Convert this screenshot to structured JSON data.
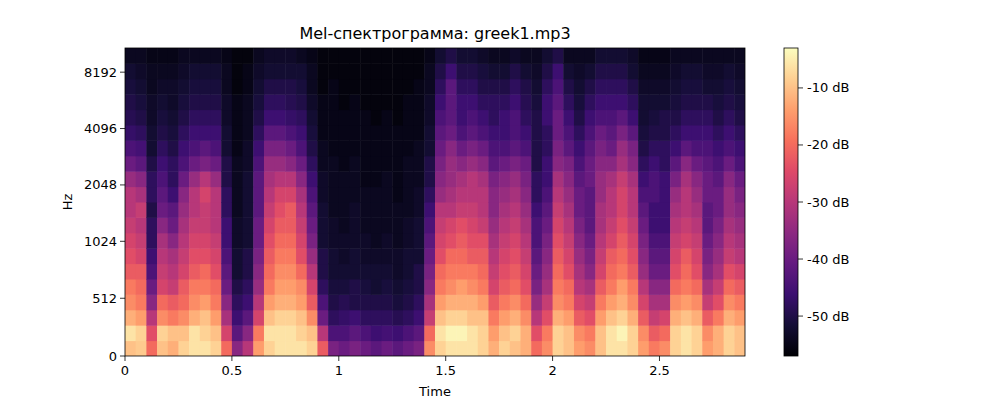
{
  "chart_data": {
    "type": "heatmap",
    "title": "Mel-спектрограмма: greek1.mp3",
    "x_label": "Time",
    "y_label": "Hz",
    "xlim": [
      0,
      2.9
    ],
    "ylim": [
      0,
      11025
    ],
    "xticks": [
      0,
      0.5,
      1,
      1.5,
      2,
      2.5
    ],
    "yticks": [
      0,
      512,
      1024,
      2048,
      4096,
      8192
    ],
    "log": "y",
    "colorbar": {
      "range": [
        -57,
        -3
      ],
      "ticks": [
        {
          "value": -10,
          "label": "-10 dB"
        },
        {
          "value": -20,
          "label": "-20 dB"
        },
        {
          "value": -30,
          "label": "-30 dB"
        },
        {
          "value": -40,
          "label": "-40 dB"
        },
        {
          "value": -50,
          "label": "-50 dB"
        }
      ]
    },
    "cells": [
      [
        -10,
        -6,
        -12,
        -16,
        -18,
        -22,
        -24,
        -26,
        -28,
        -30,
        -30,
        -34,
        -40,
        -44,
        -47,
        -49,
        -50,
        -51,
        -52,
        -54
      ],
      [
        -9,
        -8,
        -14,
        -18,
        -20,
        -22,
        -26,
        -28,
        -30,
        -28,
        -32,
        -36,
        -42,
        -45,
        -48,
        -50,
        -51,
        -52,
        -53,
        -54
      ],
      [
        -20,
        -24,
        -30,
        -36,
        -40,
        -44,
        -46,
        -48,
        -48,
        -50,
        -48,
        -48,
        -50,
        -52,
        -52,
        -53,
        -53,
        -54,
        -54,
        -55
      ],
      [
        -10,
        -8,
        -16,
        -20,
        -26,
        -28,
        -30,
        -32,
        -36,
        -40,
        -42,
        -44,
        -46,
        -48,
        -50,
        -51,
        -52,
        -53,
        -54,
        -55
      ],
      [
        -12,
        -10,
        -18,
        -22,
        -28,
        -30,
        -32,
        -36,
        -40,
        -42,
        -46,
        -48,
        -48,
        -50,
        -51,
        -52,
        -53,
        -53,
        -54,
        -55
      ],
      [
        -8,
        -10,
        -16,
        -20,
        -22,
        -26,
        -28,
        -30,
        -32,
        -34,
        -36,
        -40,
        -44,
        -46,
        -48,
        -50,
        -51,
        -52,
        -53,
        -54
      ],
      [
        -6,
        -6,
        -12,
        -16,
        -18,
        -22,
        -24,
        -26,
        -28,
        -30,
        -30,
        -34,
        -40,
        -44,
        -46,
        -48,
        -50,
        -51,
        -52,
        -54
      ],
      [
        -6,
        -8,
        -10,
        -14,
        -18,
        -20,
        -24,
        -26,
        -28,
        -28,
        -26,
        -30,
        -38,
        -42,
        -46,
        -48,
        -50,
        -51,
        -52,
        -54
      ],
      [
        -8,
        -10,
        -14,
        -18,
        -20,
        -24,
        -26,
        -28,
        -30,
        -30,
        -30,
        -34,
        -40,
        -44,
        -46,
        -48,
        -50,
        -51,
        -52,
        -54
      ],
      [
        -20,
        -26,
        -32,
        -36,
        -40,
        -42,
        -44,
        -46,
        -46,
        -48,
        -48,
        -50,
        -50,
        -52,
        -52,
        -53,
        -53,
        -54,
        -54,
        -55
      ],
      [
        -36,
        -42,
        -46,
        -48,
        -50,
        -52,
        -52,
        -53,
        -53,
        -54,
        -54,
        -54,
        -54,
        -55,
        -55,
        -55,
        -55,
        -56,
        -56,
        -56
      ],
      [
        -30,
        -36,
        -42,
        -46,
        -48,
        -50,
        -50,
        -52,
        -52,
        -52,
        -52,
        -52,
        -53,
        -53,
        -54,
        -54,
        -54,
        -55,
        -55,
        -56
      ],
      [
        -14,
        -18,
        -26,
        -30,
        -34,
        -36,
        -38,
        -40,
        -40,
        -42,
        -42,
        -42,
        -44,
        -46,
        -48,
        -50,
        -51,
        -52,
        -53,
        -54
      ],
      [
        -8,
        -6,
        -10,
        -14,
        -18,
        -20,
        -22,
        -24,
        -26,
        -28,
        -30,
        -32,
        -34,
        -38,
        -42,
        -46,
        -48,
        -50,
        -52,
        -53
      ],
      [
        -6,
        -6,
        -8,
        -12,
        -14,
        -16,
        -18,
        -20,
        -22,
        -24,
        -26,
        -30,
        -34,
        -38,
        -42,
        -46,
        -48,
        -50,
        -52,
        -53
      ],
      [
        -6,
        -6,
        -8,
        -12,
        -14,
        -16,
        -18,
        -20,
        -22,
        -22,
        -26,
        -30,
        -36,
        -40,
        -44,
        -47,
        -49,
        -50,
        -52,
        -53
      ],
      [
        -6,
        -8,
        -10,
        -14,
        -16,
        -20,
        -24,
        -26,
        -28,
        -30,
        -32,
        -36,
        -40,
        -44,
        -46,
        -48,
        -50,
        -51,
        -52,
        -54
      ],
      [
        -8,
        -10,
        -16,
        -22,
        -26,
        -30,
        -34,
        -38,
        -40,
        -42,
        -44,
        -46,
        -48,
        -50,
        -51,
        -52,
        -53,
        -54,
        -54,
        -55
      ],
      [
        -22,
        -30,
        -40,
        -44,
        -48,
        -50,
        -50,
        -52,
        -52,
        -52,
        -53,
        -53,
        -54,
        -54,
        -55,
        -55,
        -55,
        -56,
        -56,
        -56
      ],
      [
        -38,
        -44,
        -48,
        -50,
        -51,
        -52,
        -52,
        -53,
        -53,
        -54,
        -54,
        -54,
        -54,
        -55,
        -55,
        -55,
        -55,
        -55,
        -56,
        -56
      ],
      [
        -40,
        -44,
        -47,
        -49,
        -51,
        -52,
        -53,
        -53,
        -54,
        -54,
        -54,
        -54,
        -55,
        -55,
        -55,
        -55,
        -56,
        -56,
        -56,
        -56
      ],
      [
        -38,
        -42,
        -46,
        -50,
        -50,
        -52,
        -52,
        -53,
        -53,
        -53,
        -54,
        -54,
        -54,
        -55,
        -55,
        -55,
        -55,
        -56,
        -56,
        -56
      ],
      [
        -40,
        -44,
        -48,
        -50,
        -51,
        -52,
        -53,
        -53,
        -54,
        -54,
        -54,
        -55,
        -55,
        -55,
        -55,
        -55,
        -56,
        -56,
        -56,
        -56
      ],
      [
        -42,
        -46,
        -48,
        -50,
        -52,
        -52,
        -53,
        -54,
        -54,
        -54,
        -54,
        -55,
        -55,
        -55,
        -55,
        -56,
        -56,
        -56,
        -56,
        -56
      ],
      [
        -40,
        -45,
        -48,
        -50,
        -51,
        -52,
        -53,
        -53,
        -54,
        -54,
        -54,
        -54,
        -55,
        -55,
        -55,
        -55,
        -56,
        -56,
        -56,
        -56
      ],
      [
        -42,
        -46,
        -49,
        -51,
        -52,
        -53,
        -53,
        -54,
        -54,
        -54,
        -55,
        -55,
        -55,
        -55,
        -55,
        -56,
        -56,
        -56,
        -56,
        -56
      ],
      [
        -40,
        -44,
        -48,
        -50,
        -51,
        -52,
        -52,
        -53,
        -53,
        -54,
        -54,
        -54,
        -54,
        -55,
        -55,
        -55,
        -55,
        -56,
        -56,
        -56
      ],
      [
        -38,
        -42,
        -46,
        -48,
        -50,
        -50,
        -52,
        -52,
        -52,
        -53,
        -53,
        -54,
        -54,
        -54,
        -55,
        -55,
        -55,
        -55,
        -56,
        -56
      ],
      [
        -16,
        -20,
        -28,
        -32,
        -36,
        -38,
        -40,
        -42,
        -44,
        -46,
        -48,
        -50,
        -50,
        -52,
        -52,
        -53,
        -53,
        -54,
        -54,
        -55
      ],
      [
        -8,
        -6,
        -10,
        -14,
        -18,
        -20,
        -24,
        -26,
        -28,
        -30,
        -34,
        -36,
        -38,
        -40,
        -42,
        -44,
        -46,
        -48,
        -50,
        -52
      ],
      [
        -6,
        -4,
        -8,
        -12,
        -16,
        -18,
        -20,
        -24,
        -26,
        -30,
        -32,
        -34,
        -34,
        -36,
        -40,
        -42,
        -42,
        -42,
        -46,
        -50
      ],
      [
        -6,
        -4,
        -8,
        -12,
        -14,
        -18,
        -20,
        -22,
        -24,
        -28,
        -30,
        -32,
        -36,
        -40,
        -44,
        -46,
        -46,
        -48,
        -50,
        -52
      ],
      [
        -6,
        -6,
        -10,
        -12,
        -16,
        -18,
        -22,
        -24,
        -26,
        -28,
        -30,
        -30,
        -34,
        -38,
        -42,
        -44,
        -46,
        -48,
        -50,
        -52
      ],
      [
        -8,
        -8,
        -10,
        -14,
        -18,
        -20,
        -22,
        -24,
        -28,
        -30,
        -30,
        -32,
        -36,
        -40,
        -44,
        -46,
        -48,
        -50,
        -51,
        -53
      ],
      [
        -12,
        -14,
        -18,
        -22,
        -26,
        -28,
        -30,
        -32,
        -34,
        -36,
        -36,
        -38,
        -42,
        -44,
        -46,
        -48,
        -48,
        -50,
        -52,
        -54
      ],
      [
        -8,
        -10,
        -14,
        -18,
        -22,
        -24,
        -26,
        -28,
        -30,
        -32,
        -34,
        -36,
        -40,
        -44,
        -46,
        -46,
        -48,
        -50,
        -52,
        -54
      ],
      [
        -10,
        -8,
        -12,
        -16,
        -20,
        -22,
        -24,
        -26,
        -28,
        -30,
        -32,
        -34,
        -38,
        -42,
        -44,
        -44,
        -46,
        -48,
        -50,
        -53
      ],
      [
        -12,
        -12,
        -16,
        -20,
        -24,
        -26,
        -28,
        -30,
        -32,
        -34,
        -36,
        -38,
        -40,
        -44,
        -46,
        -48,
        -49,
        -50,
        -52,
        -54
      ],
      [
        -20,
        -24,
        -30,
        -34,
        -38,
        -40,
        -42,
        -44,
        -44,
        -46,
        -48,
        -48,
        -50,
        -50,
        -50,
        -50,
        -51,
        -52,
        -53,
        -54
      ],
      [
        -16,
        -18,
        -24,
        -28,
        -32,
        -34,
        -36,
        -38,
        -40,
        -42,
        -44,
        -46,
        -46,
        -48,
        -48,
        -46,
        -46,
        -48,
        -50,
        -52
      ],
      [
        -8,
        -8,
        -12,
        -16,
        -18,
        -20,
        -22,
        -24,
        -26,
        -28,
        -30,
        -32,
        -36,
        -38,
        -40,
        -40,
        -42,
        -44,
        -46,
        -50
      ],
      [
        -10,
        -10,
        -14,
        -18,
        -20,
        -24,
        -26,
        -28,
        -30,
        -32,
        -34,
        -36,
        -38,
        -42,
        -44,
        -46,
        -48,
        -50,
        -52,
        -54
      ],
      [
        -14,
        -16,
        -22,
        -26,
        -30,
        -32,
        -34,
        -36,
        -38,
        -40,
        -40,
        -42,
        -44,
        -46,
        -48,
        -50,
        -51,
        -52,
        -53,
        -54
      ],
      [
        -16,
        -18,
        -24,
        -28,
        -32,
        -36,
        -38,
        -40,
        -42,
        -42,
        -42,
        -40,
        -40,
        -42,
        -44,
        -46,
        -48,
        -50,
        -52,
        -54
      ],
      [
        -10,
        -10,
        -14,
        -18,
        -22,
        -26,
        -28,
        -30,
        -32,
        -32,
        -34,
        -34,
        -36,
        -38,
        -40,
        -44,
        -46,
        -48,
        -50,
        -52
      ],
      [
        -6,
        -6,
        -10,
        -14,
        -18,
        -20,
        -22,
        -26,
        -28,
        -30,
        -30,
        -32,
        -36,
        -40,
        -42,
        -44,
        -46,
        -48,
        -50,
        -52
      ],
      [
        -6,
        -4,
        -8,
        -12,
        -14,
        -18,
        -20,
        -22,
        -24,
        -26,
        -26,
        -28,
        -32,
        -34,
        -38,
        -42,
        -46,
        -48,
        -50,
        -52
      ],
      [
        -8,
        -8,
        -12,
        -16,
        -18,
        -22,
        -24,
        -26,
        -28,
        -30,
        -30,
        -32,
        -36,
        -38,
        -42,
        -46,
        -48,
        -50,
        -52,
        -53
      ],
      [
        -14,
        -16,
        -22,
        -26,
        -30,
        -34,
        -36,
        -38,
        -40,
        -42,
        -44,
        -46,
        -48,
        -50,
        -51,
        -52,
        -52,
        -53,
        -54,
        -55
      ],
      [
        -18,
        -22,
        -28,
        -32,
        -36,
        -40,
        -42,
        -44,
        -46,
        -46,
        -44,
        -44,
        -46,
        -48,
        -50,
        -51,
        -52,
        -53,
        -54,
        -55
      ],
      [
        -16,
        -20,
        -26,
        -32,
        -36,
        -40,
        -42,
        -44,
        -46,
        -46,
        -46,
        -46,
        -48,
        -48,
        -50,
        -50,
        -52,
        -53,
        -54,
        -55
      ],
      [
        -8,
        -8,
        -12,
        -16,
        -20,
        -24,
        -26,
        -28,
        -30,
        -32,
        -34,
        -38,
        -42,
        -46,
        -48,
        -50,
        -51,
        -52,
        -53,
        -54
      ],
      [
        -6,
        -6,
        -10,
        -14,
        -18,
        -20,
        -22,
        -26,
        -28,
        -30,
        -30,
        -32,
        -36,
        -42,
        -46,
        -48,
        -50,
        -51,
        -52,
        -54
      ],
      [
        -8,
        -8,
        -12,
        -16,
        -20,
        -24,
        -26,
        -28,
        -30,
        -32,
        -34,
        -36,
        -40,
        -44,
        -46,
        -48,
        -50,
        -51,
        -52,
        -54
      ],
      [
        -14,
        -16,
        -22,
        -28,
        -32,
        -36,
        -38,
        -40,
        -42,
        -42,
        -40,
        -40,
        -42,
        -44,
        -46,
        -48,
        -50,
        -52,
        -53,
        -54
      ],
      [
        -12,
        -12,
        -18,
        -24,
        -28,
        -32,
        -34,
        -36,
        -38,
        -40,
        -40,
        -42,
        -44,
        -46,
        -48,
        -50,
        -51,
        -52,
        -53,
        -54
      ],
      [
        -8,
        -8,
        -12,
        -16,
        -20,
        -24,
        -28,
        -30,
        -32,
        -34,
        -34,
        -36,
        -40,
        -44,
        -46,
        -48,
        -50,
        -51,
        -52,
        -54
      ],
      [
        -10,
        -10,
        -14,
        -18,
        -22,
        -26,
        -30,
        -32,
        -34,
        -36,
        -38,
        -40,
        -44,
        -46,
        -48,
        -50,
        -51,
        -52,
        -53,
        -54
      ]
    ]
  }
}
